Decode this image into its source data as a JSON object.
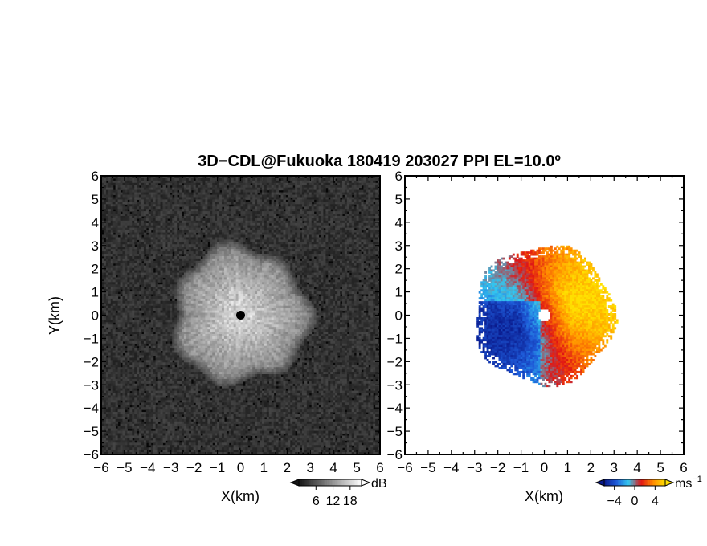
{
  "chart_data": {
    "type": "heatmap",
    "title": "3D−CDL@Fukuoka 180419 203027 PPI EL=10.0º",
    "panels": [
      {
        "quantity": "reflectivity",
        "xlabel": "X(km)",
        "ylabel": "Y(km)",
        "xlim": [
          -6,
          6
        ],
        "ylim": [
          -6,
          6
        ],
        "xticks": [
          "−6",
          "−5",
          "−4",
          "−3",
          "−2",
          "−1",
          "0",
          "1",
          "2",
          "3",
          "4",
          "5",
          "6"
        ],
        "yticks": [
          "6",
          "5",
          "4",
          "3",
          "2",
          "1",
          "0",
          "−1",
          "−2",
          "−3",
          "−4",
          "−5",
          "−6"
        ],
        "echo_radius_km": 3.0,
        "colorbar": {
          "unit": "dB",
          "ticks": [
            "6",
            "12",
            "18"
          ],
          "tick_values": [
            6,
            12,
            18
          ],
          "range": [
            0,
            22
          ],
          "colors": [
            "#000000",
            "#ffffff"
          ]
        }
      },
      {
        "quantity": "doppler velocity",
        "xlabel": "X(km)",
        "xlim": [
          -6,
          6
        ],
        "ylim": [
          -6,
          6
        ],
        "xticks": [
          "−6",
          "−5",
          "−4",
          "−3",
          "−2",
          "−1",
          "0",
          "1",
          "2",
          "3",
          "4",
          "5",
          "6"
        ],
        "yticks": [
          "6",
          "5",
          "4",
          "3",
          "2",
          "1",
          "0",
          "−1",
          "−2",
          "−3",
          "−4",
          "−5",
          "−6"
        ],
        "echo_radius_km": 3.0,
        "colorbar": {
          "unit": "ms",
          "unit_exp": "−1",
          "ticks": [
            "−4",
            "0",
            "4"
          ],
          "tick_values": [
            -4,
            0,
            4
          ],
          "range": [
            -6,
            6
          ],
          "colors": [
            "#0a1a8c",
            "#1e5ad8",
            "#33c8f0",
            "#e01414",
            "#ff8a00",
            "#ffe000"
          ]
        }
      }
    ]
  }
}
